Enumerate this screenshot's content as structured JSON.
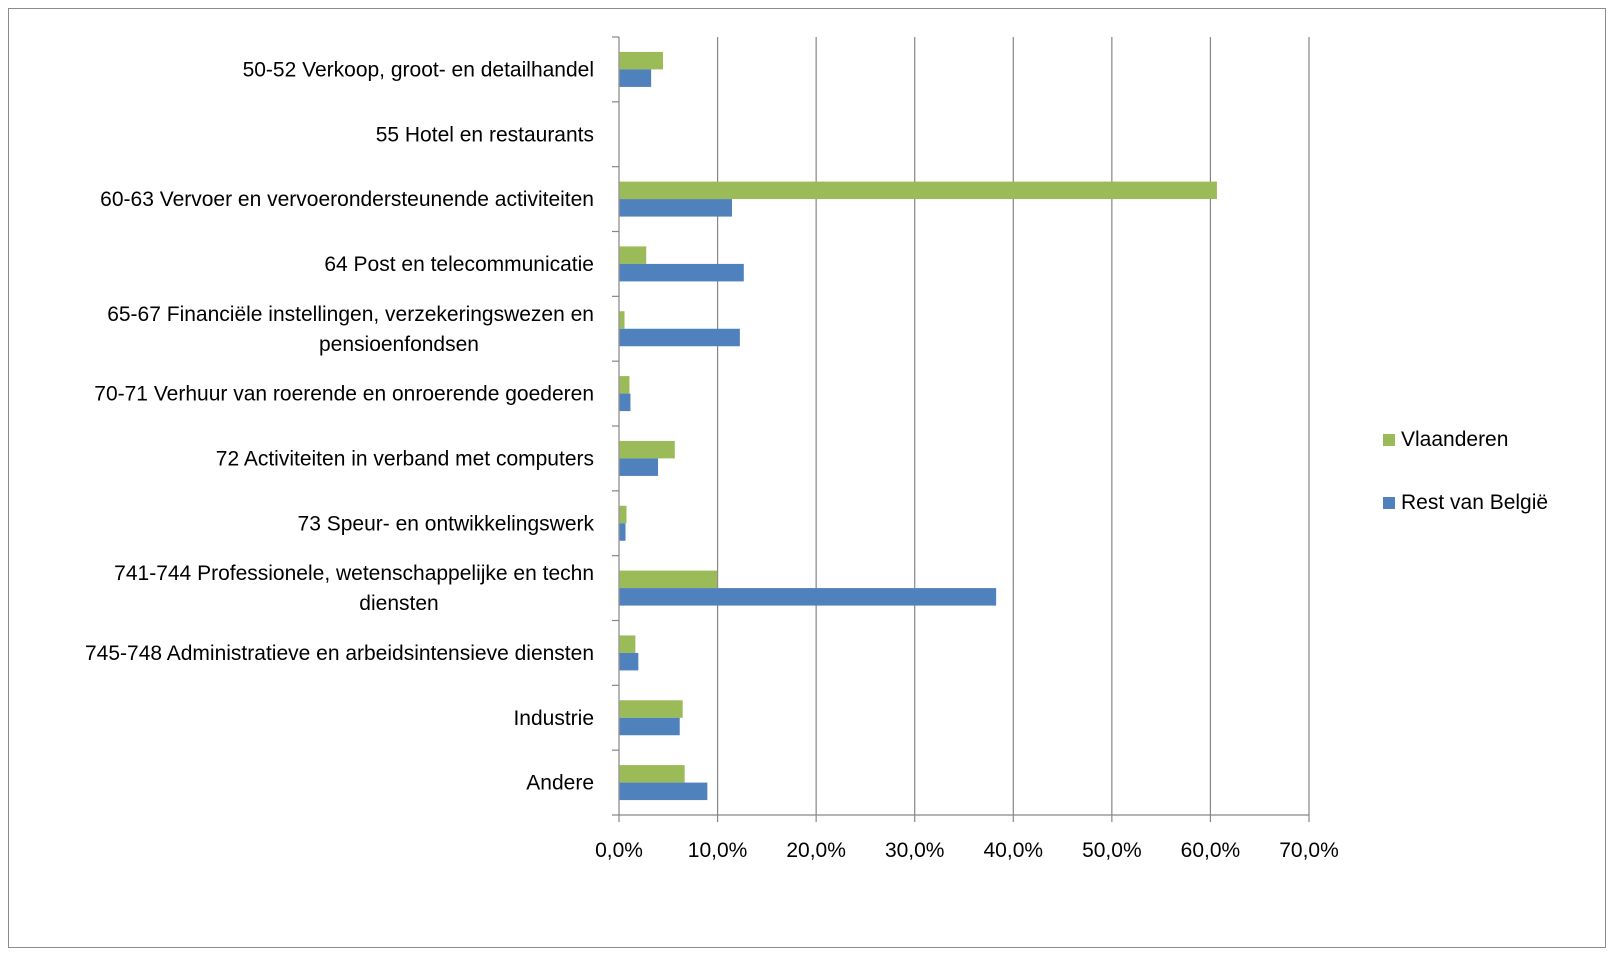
{
  "chart_data": {
    "type": "bar",
    "orientation": "horizontal",
    "categories": [
      "50-52 Verkoop, groot- en detailhandel",
      "55 Hotel en restaurants",
      "60-63 Vervoer en vervoerondersteunende activiteiten",
      "64 Post en telecommunicatie",
      "65-67 Financiële instellingen, verzekeringswezen en pensioenfondsen",
      "70-71 Verhuur van roerende en onroerende goederen",
      "72 Activiteiten in verband met computers",
      "73 Speur- en ontwikkelingswerk",
      "741-744 Professionele, wetenschappelijke en techn diensten",
      "745-748 Administratieve en arbeidsintensieve diensten",
      "Industrie",
      "Andere"
    ],
    "category_lines": [
      [
        "50-52 Verkoop, groot- en detailhandel"
      ],
      [
        "55 Hotel en restaurants"
      ],
      [
        "60-63 Vervoer en vervoerondersteunende activiteiten"
      ],
      [
        "64 Post en telecommunicatie"
      ],
      [
        "65-67 Financiële instellingen, verzekeringswezen en",
        "pensioenfondsen"
      ],
      [
        "70-71 Verhuur van roerende en onroerende goederen"
      ],
      [
        "72 Activiteiten in verband met computers"
      ],
      [
        "73 Speur- en ontwikkelingswerk"
      ],
      [
        "741-744 Professionele, wetenschappelijke en techn",
        "diensten"
      ],
      [
        "745-748 Administratieve en arbeidsintensieve diensten"
      ],
      [
        "Industrie"
      ],
      [
        "Andere"
      ]
    ],
    "series": [
      {
        "name": "Vlaanderen",
        "color": "#9bbb59",
        "values": [
          4.4,
          0.0,
          60.6,
          2.7,
          0.5,
          1.0,
          5.6,
          0.7,
          9.9,
          1.6,
          6.4,
          6.6
        ]
      },
      {
        "name": "Rest van België",
        "color": "#4f81bd",
        "values": [
          3.2,
          0.0,
          11.4,
          12.6,
          12.2,
          1.1,
          3.9,
          0.6,
          38.2,
          1.9,
          6.1,
          8.9
        ]
      }
    ],
    "xlim": [
      0,
      70
    ],
    "xticks": [
      0,
      10,
      20,
      30,
      40,
      50,
      60,
      70
    ],
    "xtick_labels": [
      "0,0%",
      "10,0%",
      "20,0%",
      "30,0%",
      "40,0%",
      "50,0%",
      "60,0%",
      "70,0%"
    ],
    "title": "",
    "xlabel": "",
    "ylabel": "",
    "grid": "vertical major gridlines",
    "legend_position": "right"
  }
}
